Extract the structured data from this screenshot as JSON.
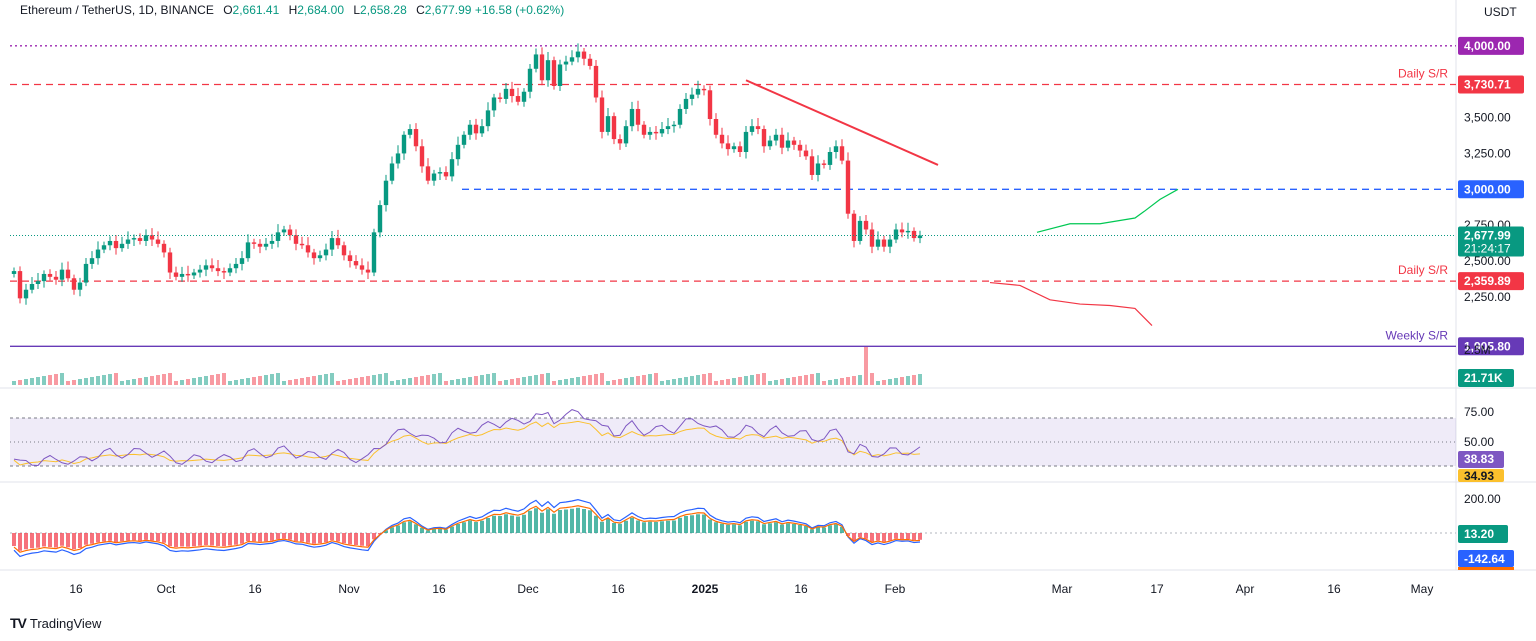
{
  "header": {
    "symbol": "Ethereum / TetherUS, 1D, BINANCE",
    "o_label": "O",
    "open": "2,661.41",
    "h_label": "H",
    "high": "2,684.00",
    "l_label": "L",
    "low": "2,658.28",
    "c_label": "C",
    "close": "2,677.99",
    "change": "+16.58 (+0.62%)"
  },
  "brand": "TradingView",
  "currency": "USDT",
  "colors": {
    "up": "#089981",
    "down": "#f23645",
    "resistance": "#f23645",
    "support_blue": "#2962ff",
    "weekly": "#673ab7",
    "rsi": "#7e57c2",
    "rsi_ma": "#fbc02d",
    "macd": "#2962ff",
    "signal": "#ff6d00"
  },
  "chart_data": {
    "type": "candlestick",
    "symbol": "ETH/USDT",
    "timeframe": "1D",
    "x_ticks": [
      "16",
      "Oct",
      "16",
      "Nov",
      "16",
      "Dec",
      "16",
      "2025",
      "16",
      "Feb",
      "Mar",
      "17",
      "Apr",
      "16",
      "May"
    ],
    "y_ticks": [
      "3,500.00",
      "3,250.00",
      "2,750.00",
      "2,500.00",
      "2,250.00"
    ],
    "last_price": "2,677.99",
    "countdown": "21:24:17",
    "levels": [
      {
        "label": "",
        "value": 4000.0,
        "tag": "4,000.00",
        "style": "dotted",
        "color": "#9c27b0"
      },
      {
        "label": "Daily S/R",
        "value": 3730.71,
        "tag": "3,730.71",
        "style": "dashed",
        "color": "#f23645"
      },
      {
        "label": "",
        "value": 3000.0,
        "tag": "3,000.00",
        "style": "dashed",
        "color": "#2962ff"
      },
      {
        "label": "Daily S/R",
        "value": 2359.89,
        "tag": "2,359.89",
        "style": "dashed",
        "color": "#f23645"
      },
      {
        "label": "Weekly S/R",
        "value": 1905.8,
        "tag": "1,905.80",
        "style": "solid",
        "color": "#673ab7"
      }
    ],
    "ylim": [
      1880,
      4180
    ],
    "closes": [
      2430,
      2240,
      2300,
      2340,
      2360,
      2410,
      2390,
      2370,
      2440,
      2380,
      2300,
      2350,
      2480,
      2520,
      2580,
      2610,
      2640,
      2590,
      2620,
      2650,
      2660,
      2640,
      2680,
      2650,
      2620,
      2560,
      2420,
      2390,
      2410,
      2400,
      2420,
      2440,
      2470,
      2450,
      2430,
      2420,
      2450,
      2480,
      2520,
      2630,
      2620,
      2600,
      2620,
      2640,
      2700,
      2720,
      2680,
      2620,
      2610,
      2560,
      2520,
      2540,
      2580,
      2660,
      2610,
      2540,
      2500,
      2470,
      2440,
      2420,
      2700,
      2890,
      3060,
      3180,
      3250,
      3380,
      3420,
      3300,
      3160,
      3060,
      3110,
      3120,
      3090,
      3210,
      3310,
      3380,
      3450,
      3390,
      3440,
      3550,
      3640,
      3630,
      3700,
      3650,
      3610,
      3680,
      3840,
      3940,
      3760,
      3900,
      3720,
      3870,
      3890,
      3920,
      3960,
      3910,
      3860,
      3640,
      3400,
      3510,
      3350,
      3320,
      3440,
      3560,
      3450,
      3380,
      3400,
      3390,
      3420,
      3440,
      3450,
      3560,
      3630,
      3660,
      3700,
      3690,
      3490,
      3380,
      3320,
      3280,
      3300,
      3260,
      3400,
      3440,
      3420,
      3300,
      3340,
      3380,
      3290,
      3340,
      3310,
      3270,
      3230,
      3100,
      3180,
      3170,
      3260,
      3300,
      3200,
      2830,
      2640,
      2780,
      2720,
      2600,
      2650,
      2600,
      2650,
      2720,
      2700,
      2710,
      2660,
      2677.99
    ],
    "ma_up_path": [
      [
        2990,
        2700
      ],
      [
        3000,
        2780
      ],
      [
        3010,
        2880
      ],
      [
        3020,
        2980
      ]
    ],
    "rsi": {
      "value": "38.83",
      "ma": "34.93",
      "ticks": [
        "75.00",
        "50.00"
      ],
      "upper": 70,
      "lower": 30
    },
    "macd": {
      "histogram": "13.20",
      "macd": "-142.64",
      "signal": "-155.84",
      "ticks": [
        "200.00"
      ]
    },
    "volume": {
      "label": "21.71K",
      "ticks": [
        "2.5M"
      ]
    }
  }
}
